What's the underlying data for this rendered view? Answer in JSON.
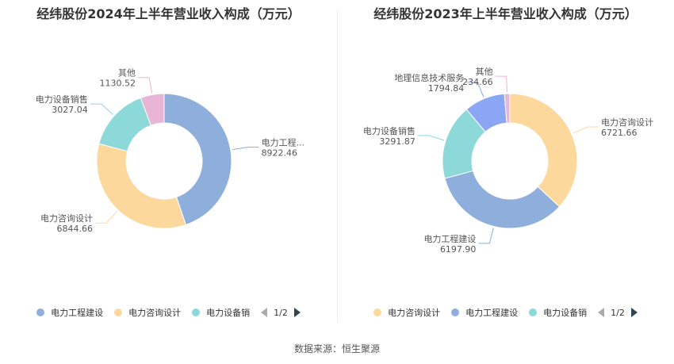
{
  "source": "数据来源：恒生聚源",
  "chart_data": [
    {
      "type": "pie",
      "title": "经纬股份2024年上半年营业收入构成（万元）",
      "slices": [
        {
          "name": "电力工程建设",
          "display_name": "电力工程...",
          "value": 8922.46,
          "value_label": "8922.46",
          "color": "#8eaedb"
        },
        {
          "name": "电力咨询设计",
          "display_name": "电力咨询设计",
          "value": 6844.66,
          "value_label": "6844.66",
          "color": "#fdd89c"
        },
        {
          "name": "电力设备销售",
          "display_name": "电力设备销售",
          "value": 3027.04,
          "value_label": "3027.04",
          "color": "#8dd8d8"
        },
        {
          "name": "其他",
          "display_name": "其他",
          "value": 1130.52,
          "value_label": "1130.52",
          "color": "#e8b5d6"
        }
      ],
      "legend": {
        "placement": "bottom",
        "items": [
          {
            "label": "电力工程建设",
            "color": "#8eaedb"
          },
          {
            "label": "电力咨询设计",
            "color": "#fdd89c"
          },
          {
            "label": "电力设备销",
            "color": "#8dd8d8"
          }
        ],
        "page": "1/2"
      }
    },
    {
      "type": "pie",
      "title": "经纬股份2023年上半年营业收入构成（万元）",
      "slices": [
        {
          "name": "电力咨询设计",
          "display_name": "电力咨询设计",
          "value": 6721.66,
          "value_label": "6721.66",
          "color": "#fdd89c"
        },
        {
          "name": "电力工程建设",
          "display_name": "电力工程建设",
          "value": 6197.9,
          "value_label": "6197.90",
          "color": "#8eaedb"
        },
        {
          "name": "电力设备销售",
          "display_name": "电力设备销售",
          "value": 3291.87,
          "value_label": "3291.87",
          "color": "#8dd8d8"
        },
        {
          "name": "地理信息技术服务",
          "display_name": "地理信息技术服务",
          "value": 1794.84,
          "value_label": "1794.84",
          "color": "#8aa6f4"
        },
        {
          "name": "其他",
          "display_name": "其他",
          "value": 234.66,
          "value_label": "234.66",
          "color": "#e8b5d6"
        }
      ],
      "legend": {
        "placement": "bottom",
        "items": [
          {
            "label": "电力咨询设计",
            "color": "#fdd89c"
          },
          {
            "label": "电力工程建设",
            "color": "#8eaedb"
          },
          {
            "label": "电力设备销",
            "color": "#8dd8d8"
          }
        ],
        "page": "1/2"
      }
    }
  ]
}
